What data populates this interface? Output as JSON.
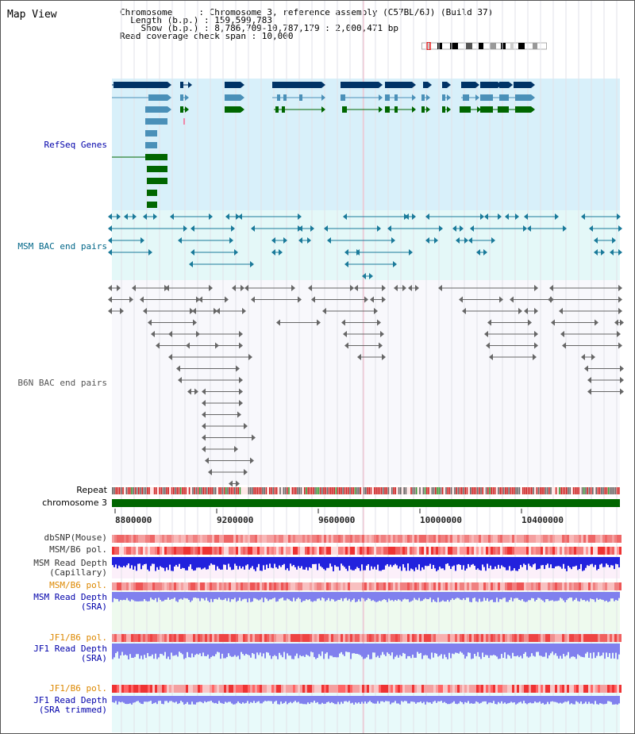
{
  "title": "Map View",
  "info": {
    "line1": "Chromosome     : Chromosome 3, reference assembly (C57BL/6J) (Build 37)",
    "line2": "  Length (b.p.) : 159,599,783",
    "line3": "    Show (b.p.) : 8,786,709-10,787,179 : 2,000,471 bp",
    "line4": "Read coverage check span : 10,000"
  },
  "tracks": {
    "refseq": "RefSeq Genes",
    "msm_bac": "MSM BAC end pairs",
    "b6n_bac": "B6N BAC end pairs",
    "repeat": "Repeat",
    "chrom": "chromosome 3",
    "dbsnp": "dbSNP(Mouse)",
    "msm_pol": "MSM/B6 pol.",
    "msm_depth_cap": "MSM Read Depth\n(Capillary)",
    "msm_pol2": "MSM/B6 pol.",
    "msm_depth_sra": "MSM Read Depth\n(SRA)",
    "jf1_pol": "JF1/B6 pol.",
    "jf1_depth_sra": "JF1 Read Depth\n(SRA)",
    "jf1_pol2": "JF1/B6 pol.",
    "jf1_depth_trim": "JF1 Read Depth\n(SRA trimmed)"
  },
  "axis": {
    "ticks": [
      "8800000",
      "9200000",
      "9600000",
      "10000000",
      "10400000"
    ]
  },
  "colors": {
    "refseq_bg": "#d8f0fa",
    "msm_bg": "#e4f8f8",
    "gene_dark": "#003366",
    "gene_mid": "#4a90b8",
    "gene_green": "#006600",
    "chrom_green": "#006600",
    "snp_red": "#ee4444",
    "depth_blue": "#2222dd",
    "depth_lav": "#8080ee"
  }
}
